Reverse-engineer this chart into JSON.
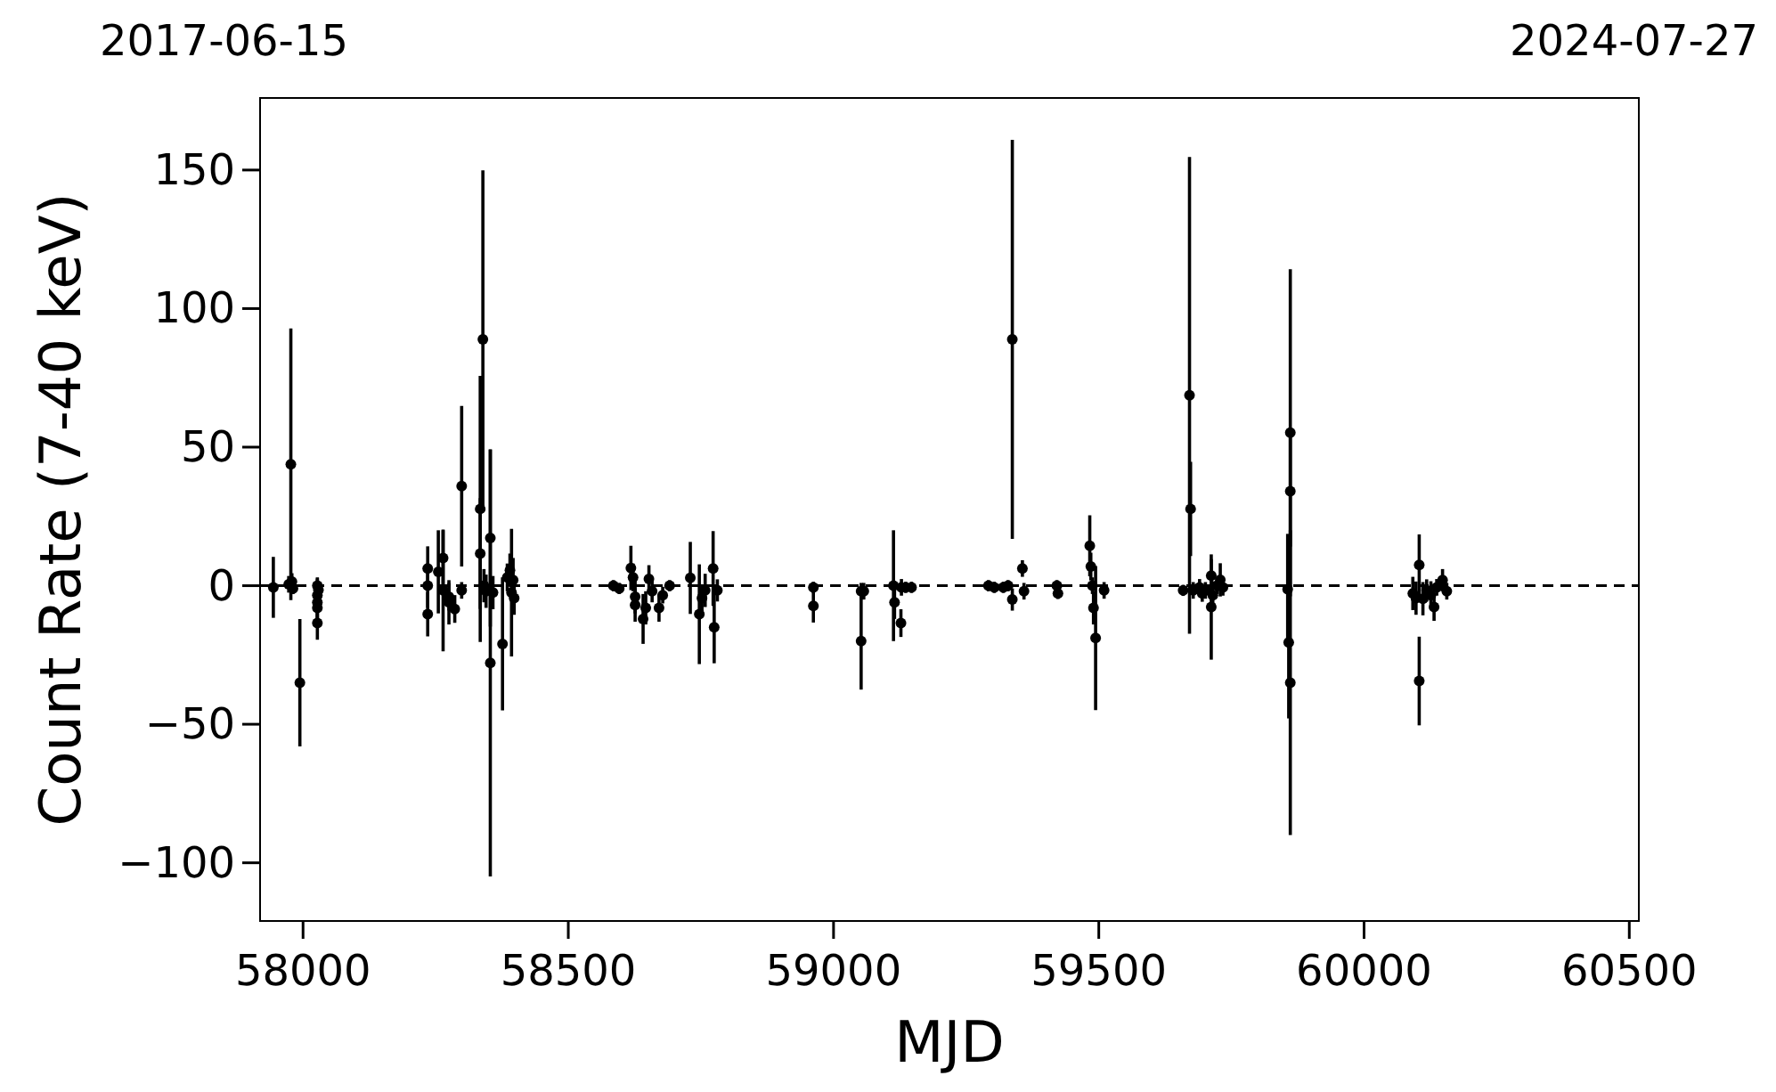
{
  "chart_data": {
    "type": "scatter",
    "xlabel": "MJD",
    "ylabel": "Count Rate (7-40 keV)",
    "annotations": [
      "2017-06-15",
      "2024-07-27"
    ],
    "xlim": [
      57919,
      60518
    ],
    "ylim": [
      -121,
      176
    ],
    "xticks": [
      58000,
      58500,
      59000,
      59500,
      60000,
      60500
    ],
    "yticks": [
      {
        "value": -100,
        "label": "−100"
      },
      {
        "value": -50,
        "label": "−50"
      },
      0,
      50,
      100,
      150
    ],
    "grid": false,
    "marker": "circle",
    "ref_lines": [
      {
        "axis": "y",
        "value": 0,
        "color": "#000000",
        "line_style": "dashed"
      }
    ],
    "series": [
      {
        "color": "#000000",
        "x": [
          57944,
          57973,
          57977,
          57979,
          57981,
          57994,
          58027,
          58027,
          58027,
          58027,
          58027,
          58029,
          58235,
          58235,
          58235,
          58255,
          58264,
          58264,
          58275,
          58275,
          58286,
          58299,
          58299,
          58334,
          58334,
          58339,
          58341,
          58345,
          58353,
          58353,
          58358,
          58376,
          58385,
          58390,
          58393,
          58396,
          58398,
          58585,
          58596,
          58618,
          58622,
          58626,
          58626,
          58641,
          58646,
          58652,
          58658,
          58671,
          58678,
          58691,
          58730,
          58747,
          58752,
          58758,
          58773,
          58775,
          58781,
          58962,
          58962,
          59052,
          59052,
          59057,
          59113,
          59115,
          59127,
          59128,
          59136,
          59147,
          59292,
          59303,
          59320,
          59329,
          59337,
          59337,
          59356,
          59359,
          59421,
          59423,
          59483,
          59485,
          59488,
          59490,
          59494,
          59510,
          59659,
          59671,
          59673,
          59678,
          59690,
          59695,
          59701,
          59712,
          59715,
          59712,
          59723,
          59729,
          59734,
          59856,
          59858,
          59861,
          59861,
          59861,
          60092,
          60098,
          60104,
          60104,
          60111,
          60118,
          60126,
          60132,
          60137,
          60148,
          60156
        ],
        "values": [
          -0.6,
          0.5,
          43.8,
          1.5,
          -1,
          -35,
          0,
          -3.4,
          -6,
          -8,
          -13.5,
          -1.5,
          0,
          6.2,
          -10.3,
          5,
          10,
          -1.7,
          -6,
          -4,
          -8.4,
          35.9,
          -1.7,
          27.7,
          11.6,
          88.9,
          0,
          -2,
          17.2,
          -27.9,
          -2.5,
          -21,
          3,
          5.6,
          -2.5,
          2,
          -4.5,
          0,
          -1,
          6.4,
          3,
          -7,
          -4,
          -12,
          -8,
          2.4,
          -2,
          -8,
          -3.4,
          0,
          2.8,
          -10.3,
          -4.5,
          -1.7,
          6.2,
          -15,
          -1.7,
          -0.6,
          -7.3,
          -2,
          -20,
          -2,
          0,
          -6,
          -13.5,
          -0.6,
          -0.6,
          -0.6,
          0,
          -0.6,
          -0.6,
          0,
          -5,
          88.9,
          6.2,
          -2,
          0,
          -2.8,
          14.4,
          6.9,
          0,
          -8,
          -18.9,
          -1.7,
          -1.7,
          68.7,
          27.7,
          -1.7,
          -0.6,
          -2.8,
          -1.7,
          3.6,
          -3.4,
          -7.7,
          0,
          2.1,
          -0.6,
          -1.3,
          -20.5,
          55.2,
          34.1,
          -35,
          -2.8,
          -4.5,
          7.5,
          -34.4,
          -4.7,
          -1.7,
          -3.4,
          -7.7,
          -0.6,
          2,
          -2
        ],
        "errors": [
          11,
          3,
          49,
          3,
          2,
          23,
          3,
          6,
          6,
          6,
          6,
          3,
          8,
          8,
          8,
          15,
          10,
          22,
          8,
          5,
          5,
          29,
          3,
          48,
          20,
          61,
          6,
          6,
          32,
          77,
          6,
          24,
          5,
          6,
          23,
          8,
          6,
          2,
          2,
          8,
          5,
          6,
          6,
          9,
          6,
          5,
          4,
          5,
          3,
          2,
          13,
          18,
          5,
          6,
          13.5,
          13,
          4,
          2,
          6,
          3,
          17.5,
          3,
          20,
          6,
          5,
          3,
          2,
          2,
          2,
          2,
          2,
          2,
          4,
          72,
          3,
          3,
          2,
          2,
          11,
          5,
          3,
          6,
          26,
          3,
          2,
          86,
          17,
          3,
          3,
          3,
          3,
          6,
          5,
          19,
          3,
          6,
          3,
          20,
          27.4,
          59,
          20,
          55,
          6,
          6,
          11,
          16,
          6,
          4,
          5,
          5,
          3,
          4,
          3
        ]
      }
    ]
  }
}
